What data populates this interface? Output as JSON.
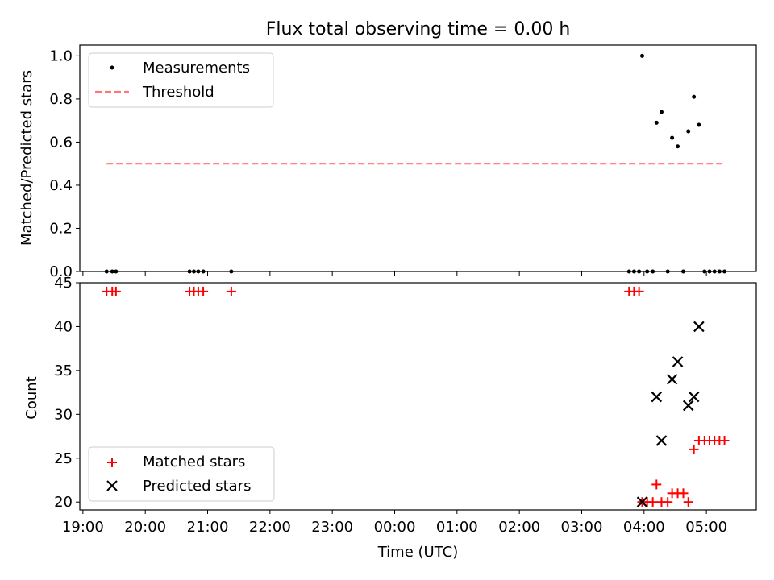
{
  "chart_data": [
    {
      "type": "scatter",
      "title": "Flux total observing time = 0.00 h",
      "xlabel": "",
      "ylabel": "Matched/Predicted stars",
      "xlim": [
        18.95,
        29.8
      ],
      "ylim": [
        0.0,
        1.05
      ],
      "yticks": [
        0.0,
        0.2,
        0.4,
        0.6,
        0.8,
        1.0
      ],
      "ytick_labels": [
        "0.0",
        "0.2",
        "0.4",
        "0.6",
        "0.8",
        "1.0"
      ],
      "legend_position": "upper-left",
      "series": [
        {
          "name": "Measurements",
          "marker": "dot",
          "color": "#000000",
          "x": [
            19.38,
            19.47,
            19.53,
            20.71,
            20.78,
            20.85,
            20.93,
            21.38,
            27.76,
            27.84,
            27.92,
            28.05,
            28.14,
            28.2,
            28.28,
            28.38,
            28.45,
            28.54,
            28.63,
            28.71,
            28.8,
            28.88,
            28.97,
            29.05,
            29.13,
            29.21,
            29.29,
            27.97
          ],
          "y": [
            0,
            0,
            0,
            0,
            0,
            0,
            0,
            0,
            0,
            0,
            0,
            0,
            0,
            0.69,
            0.74,
            0,
            0.62,
            0.58,
            0,
            0.65,
            0.81,
            0.68,
            0,
            0,
            0,
            0,
            0,
            1.0
          ]
        },
        {
          "name": "Threshold",
          "style": "dashed",
          "color": "#ff7777",
          "x": [
            19.38,
            29.25
          ],
          "y": [
            0.5,
            0.5
          ]
        }
      ]
    },
    {
      "type": "scatter",
      "title": "",
      "xlabel": "Time (UTC)",
      "ylabel": "Count",
      "xlim": [
        18.95,
        29.8
      ],
      "ylim": [
        19.1,
        45.0
      ],
      "yticks": [
        20,
        25,
        30,
        35,
        40,
        45
      ],
      "ytick_labels": [
        "20",
        "25",
        "30",
        "35",
        "40",
        "45"
      ],
      "xticks": [
        19,
        20,
        21,
        22,
        23,
        24,
        25,
        26,
        27,
        28,
        29
      ],
      "xtick_labels": [
        "19:00",
        "20:00",
        "21:00",
        "22:00",
        "23:00",
        "00:00",
        "01:00",
        "02:00",
        "03:00",
        "04:00",
        "05:00"
      ],
      "legend_position": "lower-left",
      "series": [
        {
          "name": "Matched stars",
          "marker": "plus",
          "color": "#ff0000",
          "x": [
            19.38,
            19.47,
            19.53,
            20.71,
            20.78,
            20.85,
            20.93,
            21.38,
            27.76,
            27.84,
            27.92,
            27.97,
            28.05,
            28.14,
            28.2,
            28.28,
            28.38,
            28.45,
            28.54,
            28.63,
            28.71,
            28.8,
            28.88,
            28.97,
            29.05,
            29.13,
            29.21,
            29.29
          ],
          "y": [
            44,
            44,
            44,
            44,
            44,
            44,
            44,
            44,
            44,
            44,
            44,
            20,
            20,
            20,
            22,
            20,
            20,
            21,
            21,
            21,
            20,
            26,
            27,
            27,
            27,
            27,
            27,
            27
          ]
        },
        {
          "name": "Predicted stars",
          "marker": "x",
          "color": "#000000",
          "x": [
            27.97,
            28.2,
            28.28,
            28.45,
            28.54,
            28.71,
            28.8,
            28.88
          ],
          "y": [
            20,
            32,
            27,
            34,
            36,
            31,
            32,
            40
          ]
        }
      ]
    }
  ]
}
